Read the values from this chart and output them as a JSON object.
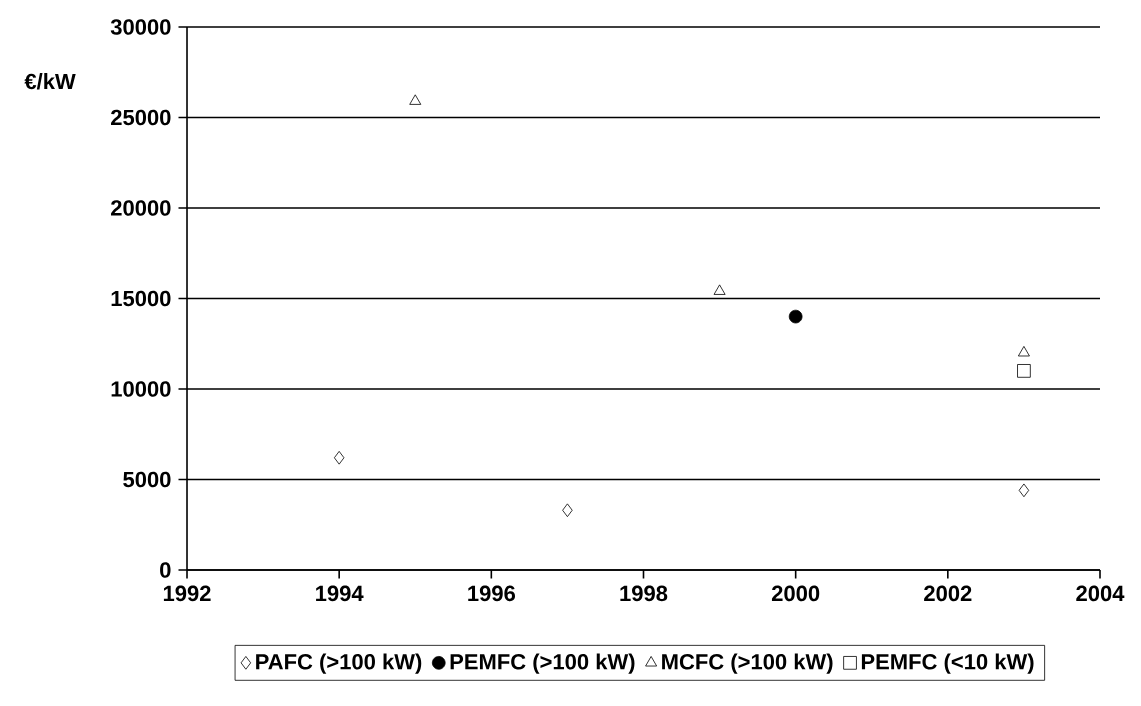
{
  "chart_data": {
    "type": "scatter",
    "ylabel": "€/kW",
    "xlim": [
      1992,
      2004
    ],
    "xticks": [
      1992,
      1994,
      1996,
      1998,
      2000,
      2002,
      2004
    ],
    "ylim": [
      0,
      30000
    ],
    "yticks": [
      0,
      5000,
      10000,
      15000,
      20000,
      25000,
      30000
    ],
    "grid": "y",
    "legend": "bottom",
    "series": [
      {
        "name": "PAFC (>100 kW)",
        "color": "#000000",
        "marker": "diamond",
        "x": [
          1994,
          1997,
          2003
        ],
        "values": [
          6200,
          3300,
          4400
        ]
      },
      {
        "name": "PEMFC (>100 kW)",
        "color": "#000000",
        "marker": "circle",
        "x": [
          2000
        ],
        "values": [
          14000
        ]
      },
      {
        "name": "MCFC (>100 kW)",
        "color": "#000000",
        "marker": "triangle",
        "x": [
          1995,
          1999,
          2003
        ],
        "values": [
          25900,
          15400,
          12000
        ]
      },
      {
        "name": "PEMFC (<10 kW)",
        "color": "#000000",
        "marker": "square",
        "x": [
          2003
        ],
        "values": [
          11000
        ]
      }
    ]
  }
}
